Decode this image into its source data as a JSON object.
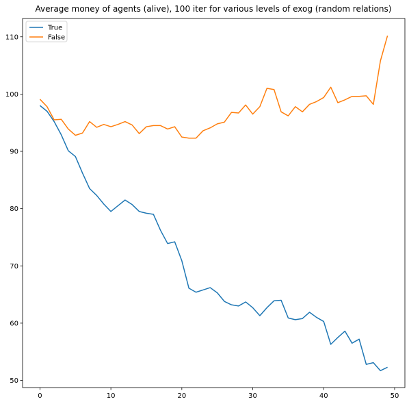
{
  "chart_data": {
    "type": "line",
    "title": "Average money of agents (alive), 100 iter for various levels of exog  (random relations)",
    "xlabel": "",
    "ylabel": "",
    "xlim": [
      -2.45,
      51.45
    ],
    "ylim": [
      48.75,
      113.2
    ],
    "xticks": [
      0,
      10,
      20,
      30,
      40,
      50
    ],
    "yticks": [
      50,
      60,
      70,
      80,
      90,
      100,
      110
    ],
    "grid": false,
    "legend_position": "top-left",
    "x": [
      0,
      1,
      2,
      3,
      4,
      5,
      6,
      7,
      8,
      9,
      10,
      11,
      12,
      13,
      14,
      15,
      16,
      17,
      18,
      19,
      20,
      21,
      22,
      23,
      24,
      25,
      26,
      27,
      28,
      29,
      30,
      31,
      32,
      33,
      34,
      35,
      36,
      37,
      38,
      39,
      40,
      41,
      42,
      43,
      44,
      45,
      46,
      47,
      48,
      49
    ],
    "series": [
      {
        "name": "True",
        "color": "#1f77b4",
        "values": [
          98.0,
          97.0,
          95.2,
          92.9,
          90.1,
          89.1,
          86.2,
          83.5,
          82.3,
          80.8,
          79.5,
          80.5,
          81.5,
          80.7,
          79.5,
          79.2,
          79.0,
          76.2,
          73.9,
          74.2,
          70.9,
          66.1,
          65.4,
          65.8,
          66.2,
          65.3,
          63.8,
          63.2,
          63.0,
          63.7,
          62.7,
          61.3,
          62.7,
          63.9,
          64.0,
          60.9,
          60.6,
          60.8,
          61.9,
          61.0,
          60.3,
          56.3,
          57.5,
          58.6,
          56.5,
          57.2,
          52.8,
          53.1,
          51.7,
          52.3
        ]
      },
      {
        "name": "False",
        "color": "#ff7f0e",
        "values": [
          99.1,
          97.8,
          95.5,
          95.6,
          93.9,
          92.8,
          93.2,
          95.2,
          94.2,
          94.7,
          94.3,
          94.7,
          95.2,
          94.6,
          93.1,
          94.3,
          94.5,
          94.5,
          93.9,
          94.3,
          92.5,
          92.3,
          92.3,
          93.6,
          94.1,
          94.8,
          95.1,
          96.8,
          96.7,
          98.1,
          96.5,
          97.8,
          101.0,
          100.8,
          96.9,
          96.2,
          97.8,
          96.9,
          98.2,
          98.7,
          99.4,
          101.2,
          98.5,
          99.0,
          99.6,
          99.6,
          99.7,
          98.2,
          105.8,
          110.2
        ]
      }
    ]
  }
}
